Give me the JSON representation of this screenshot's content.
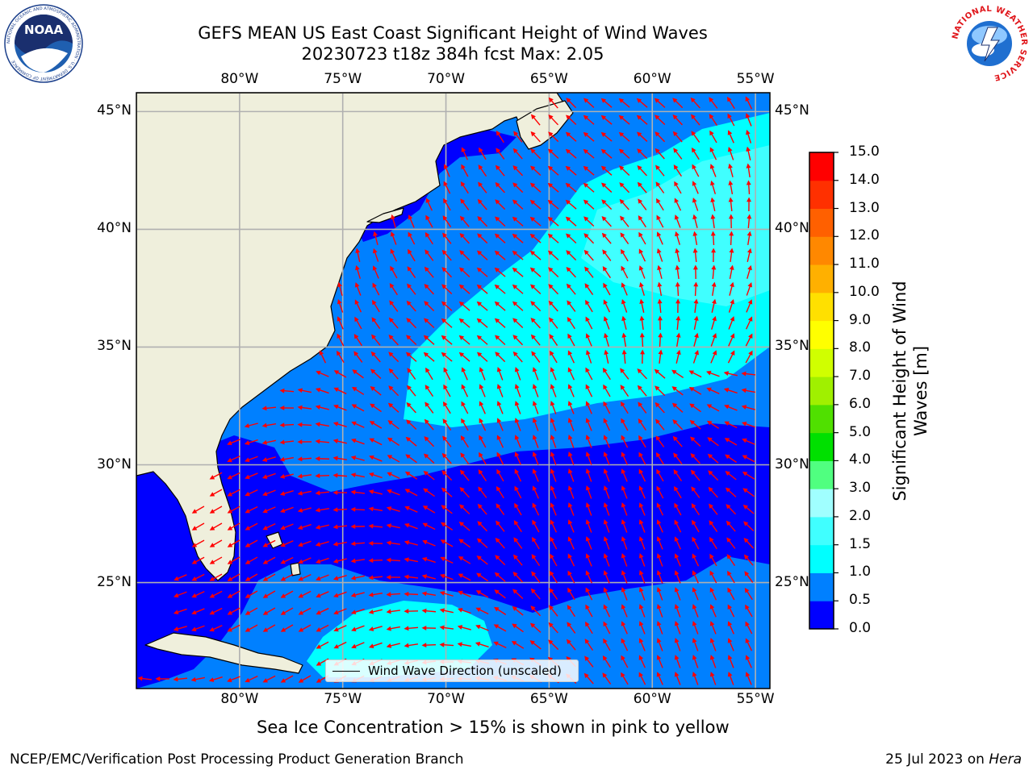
{
  "title": {
    "line1": "GEFS MEAN US East Coast Significant Height of Wind Waves",
    "line2": "20230723 t18z 384h fcst   Max: 2.05"
  },
  "map": {
    "lon_labels": [
      "80°W",
      "75°W",
      "70°W",
      "65°W",
      "60°W",
      "55°W"
    ],
    "lat_labels": [
      "45°N",
      "40°N",
      "35°N",
      "30°N",
      "25°N"
    ],
    "lon_values": [
      -80,
      -75,
      -70,
      -65,
      -60,
      -55
    ],
    "lat_values": [
      45,
      40,
      35,
      30,
      25
    ],
    "extent": {
      "lon_min": -85,
      "lon_max": -54.3,
      "lat_min": 20.5,
      "lat_max": 45.8
    },
    "land_color": "#efefdc",
    "grid_color": "#b0b0b0",
    "arrow_color": "#ff0000",
    "legend_label": "Wind Wave Direction (unscaled)"
  },
  "colorbar": {
    "label_line1": "Significant Height of Wind",
    "label_line2": "Waves [m]",
    "tick_labels": [
      "0.0",
      "0.5",
      "1.0",
      "1.5",
      "2.0",
      "3.0",
      "4.0",
      "5.0",
      "6.0",
      "7.0",
      "8.0",
      "9.0",
      "10.0",
      "11.0",
      "12.0",
      "13.0",
      "14.0",
      "15.0"
    ],
    "colors": [
      "#0000ff",
      "#0080ff",
      "#00ffff",
      "#40ffff",
      "#a0ffff",
      "#50ff80",
      "#00e000",
      "#50e000",
      "#a0f000",
      "#d0ff00",
      "#ffff00",
      "#ffe000",
      "#ffb000",
      "#ff8800",
      "#ff6000",
      "#ff3000",
      "#ff0000"
    ]
  },
  "footer": {
    "sea_ice_note": "Sea Ice Concentration > 15% is shown in pink to yellow",
    "branch": "NCEP/EMC/Verification Post Processing Product Generation Branch",
    "date_prefix": "25 Jul 2023 on ",
    "date_machine": "Hera"
  },
  "logos": {
    "noaa_text": "NOAA",
    "noaa_ring": "NATIONAL OCEANIC AND ATMOSPHERIC ADMINISTRATION · U.S. DEPARTMENT OF COMMERCE",
    "nws_ring": "NATIONAL WEATHER SERVICE"
  }
}
